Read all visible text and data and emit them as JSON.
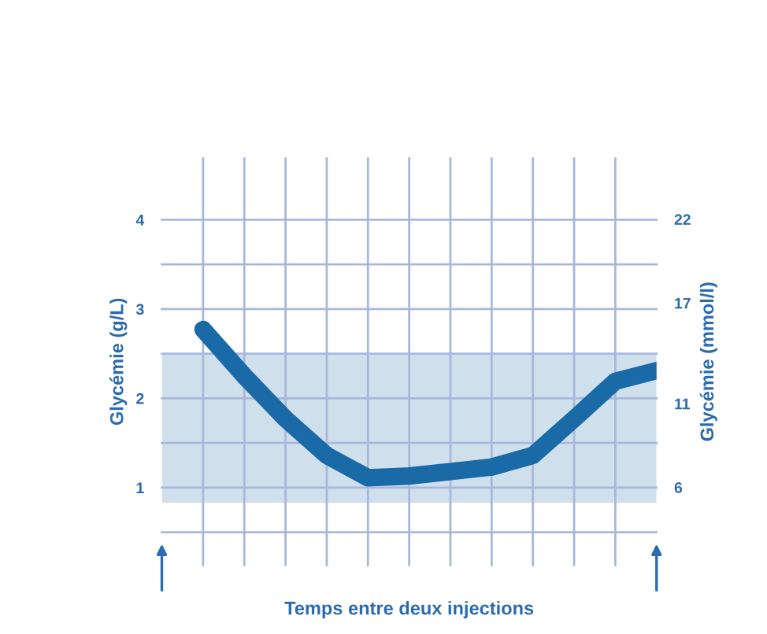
{
  "chart_data": {
    "type": "line",
    "xlabel": "Temps entre deux injections",
    "ylabel": "Glycémie (g/L)",
    "y2label": "Glycémie (mmol/l)",
    "categories": [
      null,
      null,
      null,
      null,
      null,
      null,
      null,
      null,
      null,
      null,
      null,
      null,
      null
    ],
    "series": [
      {
        "color": "#1a6aa8",
        "values": [
          null,
          2.77,
          2.25,
          1.77,
          1.36,
          1.11,
          1.13,
          1.18,
          1.23,
          1.36,
          1.77,
          2.19,
          2.31
        ]
      }
    ],
    "ylim": [
      0.12,
      4.7
    ],
    "yticks": [
      {
        "value": 0.5,
        "label": null
      },
      1,
      {
        "value": 1.5,
        "label": null
      },
      2,
      {
        "value": 2.5,
        "label": null
      },
      3,
      {
        "value": 3.5,
        "label": null
      },
      4
    ],
    "y2lim": [
      1.3,
      25.7
    ],
    "y2ticks": [
      6,
      11,
      17,
      22
    ],
    "bands": [
      {
        "axis": "y",
        "from": 0.83,
        "to": 2.5,
        "color": "#cfe0ec"
      }
    ],
    "grid": true,
    "marker": "none",
    "line_style": "solid",
    "legend": false
  }
}
